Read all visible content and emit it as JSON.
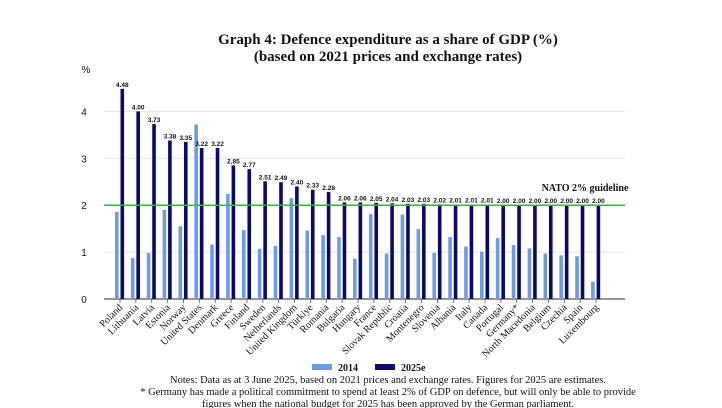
{
  "chart_data": {
    "type": "bar",
    "title": "Graph 4: Defence expenditure as a share of GDP (%)",
    "subtitle": "(based on 2021 prices and exchange rates)",
    "ylabel": "%",
    "ylim": [
      0,
      4.6
    ],
    "yticks": [
      "0",
      "1",
      "2",
      "3",
      "4"
    ],
    "grid": true,
    "legend_position": "bottom",
    "categories": [
      "Poland",
      "Lithuania",
      "Latvia",
      "Estonia",
      "Norway",
      "United States",
      "Denmark",
      "Greece",
      "Finland",
      "Sweden",
      "Netherlands",
      "United Kingdom",
      "Türkiye",
      "Romania",
      "Bulgaria",
      "Hungary",
      "France",
      "Slovak Republic",
      "Croatia",
      "Montenegro",
      "Slovenia",
      "Albania",
      "Italy",
      "Canada",
      "Portugal",
      "Germany*",
      "North Macedonia",
      "Belgium",
      "Czechia",
      "Spain",
      "Luxembourg"
    ],
    "series": [
      {
        "name": "2014",
        "color": "#6f9be3",
        "values": [
          1.86,
          0.87,
          0.98,
          1.9,
          1.55,
          3.72,
          1.16,
          2.24,
          1.47,
          1.07,
          1.13,
          2.15,
          1.46,
          1.36,
          1.32,
          0.86,
          1.81,
          0.97,
          1.8,
          1.49,
          0.98,
          1.32,
          1.12,
          1.01,
          1.3,
          1.15,
          1.08,
          0.97,
          0.93,
          0.91,
          0.37
        ]
      },
      {
        "name": "2025e",
        "color": "#0a0a6b",
        "values": [
          4.48,
          4.0,
          3.73,
          3.38,
          3.35,
          3.22,
          3.22,
          2.85,
          2.77,
          2.51,
          2.49,
          2.4,
          2.33,
          2.28,
          2.06,
          2.06,
          2.05,
          2.04,
          2.03,
          2.03,
          2.02,
          2.01,
          2.01,
          2.01,
          2.0,
          2.0,
          2.0,
          2.0,
          2.0,
          2.0,
          2.0
        ],
        "data_labels": [
          "4.48",
          "4.00",
          "3.73",
          "3.38",
          "3.35",
          "3.22",
          "3.22",
          "2.85",
          "2.77",
          "2.51",
          "2.49",
          "2.40",
          "2.33",
          "2.28",
          "2.06",
          "2.06",
          "2.05",
          "2.04",
          "2.03",
          "2.03",
          "2.02",
          "2.01",
          "2.01",
          "2.01",
          "2.00",
          "2.00",
          "2.00",
          "2.00",
          "2.00",
          "2.00",
          "2.00"
        ]
      }
    ],
    "reference_line": {
      "value": 2,
      "label": "NATO 2% guideline",
      "color": "#3cb043"
    },
    "notes": [
      "Notes: Data as at 3 June 2025, based on 2021 prices and exchange rates. Figures for 2025 are estimates.",
      "* Germany has made a political commitment to spend at least 2% of GDP on defence, but will only be able to provide",
      "figures when the national budget for 2025 has been approved by the German parliament."
    ]
  }
}
